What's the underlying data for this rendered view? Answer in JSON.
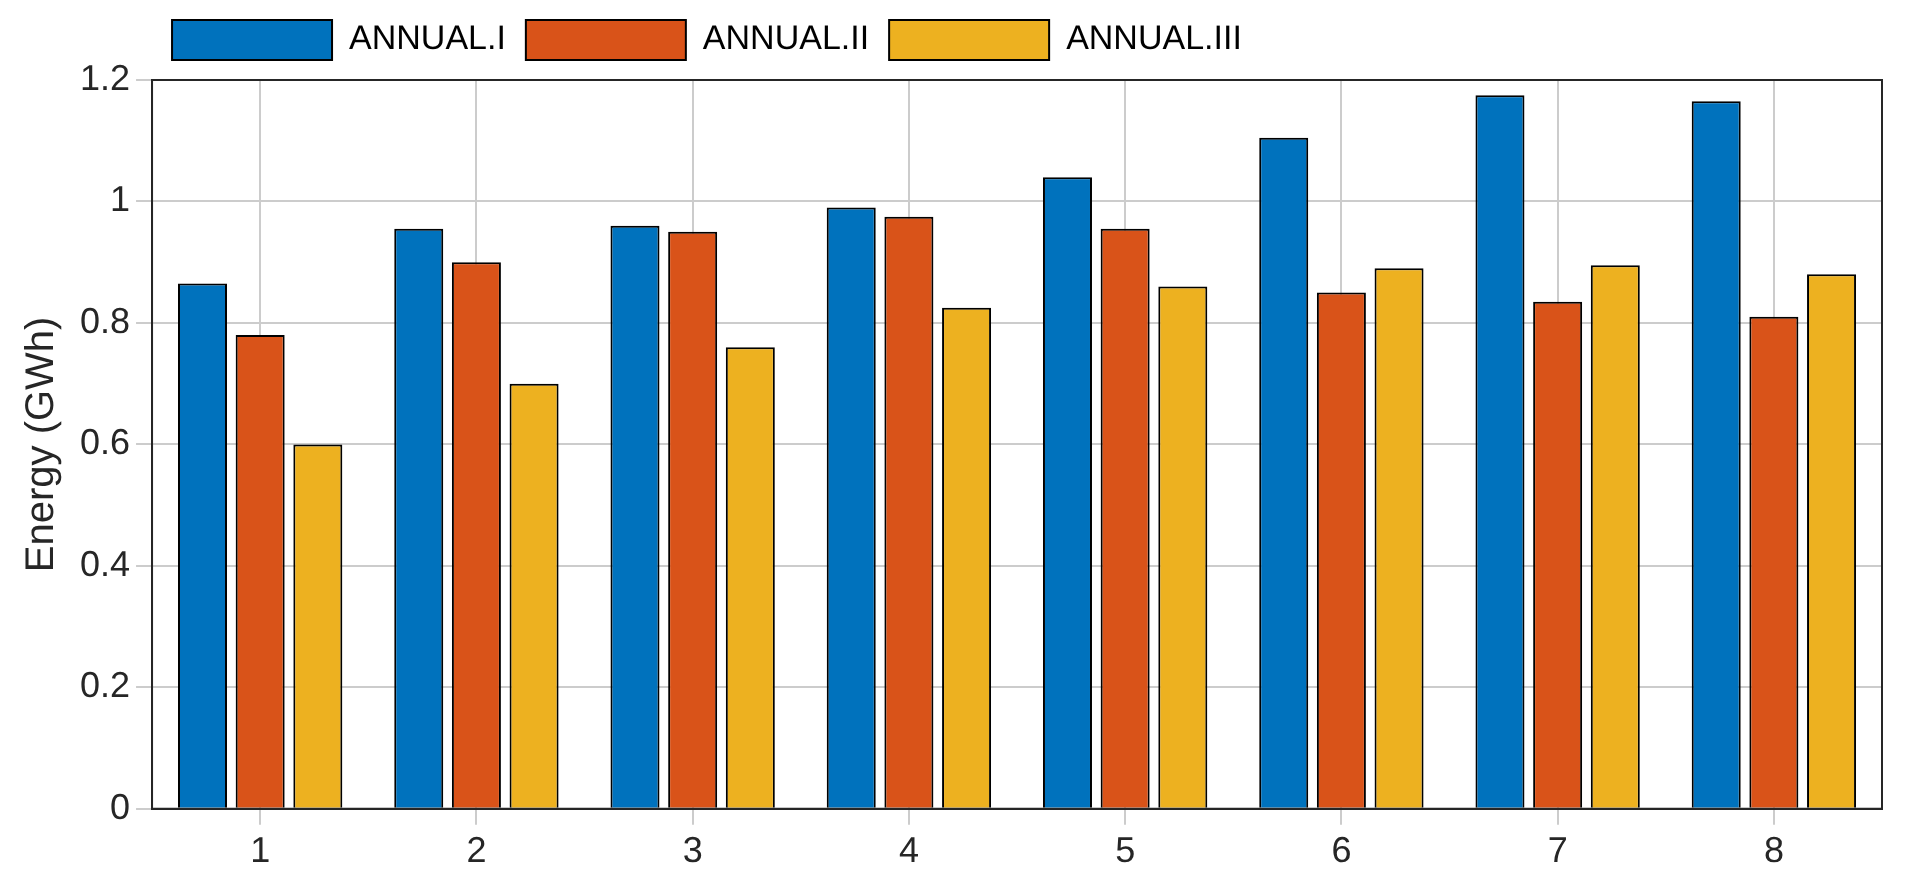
{
  "chart_data": {
    "type": "bar",
    "ylabel": "Energy (GWh)",
    "categories": [
      "1",
      "2",
      "3",
      "4",
      "5",
      "6",
      "7",
      "8"
    ],
    "series": [
      {
        "name": "ANNUAL.I",
        "color": "#0072bd",
        "values": [
          0.865,
          0.955,
          0.96,
          0.99,
          1.04,
          1.105,
          1.175,
          1.165
        ]
      },
      {
        "name": "ANNUAL.II",
        "color": "#d95319",
        "values": [
          0.78,
          0.9,
          0.95,
          0.975,
          0.955,
          0.85,
          0.835,
          0.81
        ]
      },
      {
        "name": "ANNUAL.III",
        "color": "#edb120",
        "values": [
          0.6,
          0.7,
          0.76,
          0.825,
          0.86,
          0.89,
          0.895,
          0.88
        ]
      }
    ],
    "ylim": [
      0,
      1.2
    ],
    "yticks": [
      0,
      0.2,
      0.4,
      0.6,
      0.8,
      1,
      1.2
    ],
    "grid": true,
    "legend": "top left"
  }
}
